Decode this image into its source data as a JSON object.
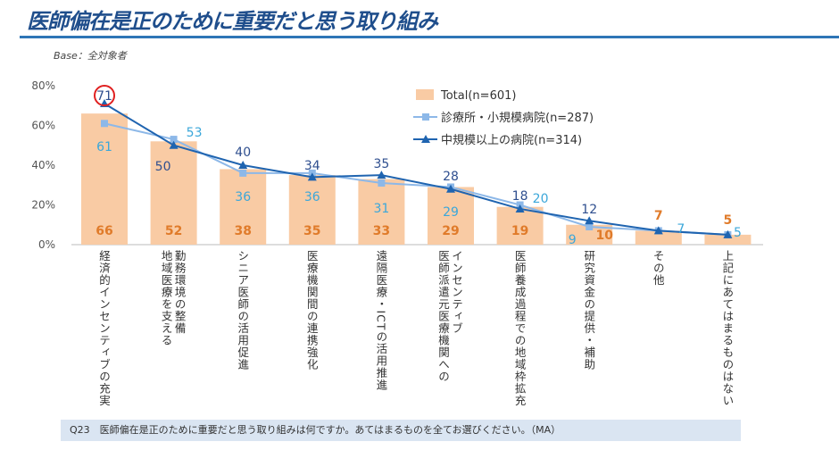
{
  "title": "医師偏在是正のために重要だと思う取り組み",
  "base": "Base：全対象者",
  "footer": "Q23　医師偏在是正のために重要だと思う取り組みは何ですか。あてはまるものを全てお選びください。（MA）",
  "chart_data": {
    "type": "bar",
    "categories": [
      [
        "経済的インセンティブの充実"
      ],
      [
        "勤務環境の整備",
        "地域医療を支える"
      ],
      [
        "シニア医師の活用促進"
      ],
      [
        "医療機関間の連携強化"
      ],
      [
        "遠隔医療・ICTの活用推進"
      ],
      [
        "インセンティブ",
        "医師派遣元医療機関への"
      ],
      [
        "医師養成過程での地域枠拡充"
      ],
      [
        "研究資金の提供・補助"
      ],
      [
        "その他"
      ],
      [
        "上記にあてはまるものはない"
      ]
    ],
    "yticks": [
      "0%",
      "20%",
      "40%",
      "60%",
      "80%"
    ],
    "ylim": [
      0,
      80
    ],
    "legend_position": "top-right",
    "series": [
      {
        "name": "Total(n=601)",
        "type": "bar",
        "color": "#F9CBA4",
        "label_color": "#E07B2A",
        "values": [
          66,
          52,
          38,
          35,
          33,
          29,
          19,
          10,
          7,
          5
        ]
      },
      {
        "name": "診療所・小規模病院(n=287)",
        "type": "line",
        "marker": "square",
        "color": "#8DB8E8",
        "label_color": "#3BA7DA",
        "values": [
          61,
          53,
          36,
          36,
          31,
          29,
          20,
          9,
          7,
          5
        ]
      },
      {
        "name": "中規模以上の病院(n=314)",
        "type": "line",
        "marker": "triangle",
        "color": "#1F64B0",
        "label_color": "#2F4F8F",
        "values": [
          71,
          50,
          40,
          34,
          35,
          28,
          18,
          12,
          7,
          5
        ]
      }
    ],
    "highlight": {
      "series": 2,
      "index": 0,
      "color": "#E02020"
    }
  }
}
